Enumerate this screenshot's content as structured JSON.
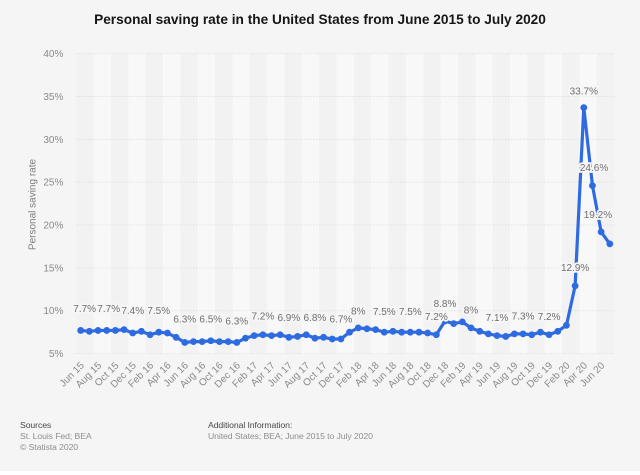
{
  "title": "Personal saving rate in the United States from June 2015 to July 2020",
  "chart_data": {
    "type": "line",
    "title": "Personal saving rate in the United States from June 2015 to July 2020",
    "xlabel": "",
    "ylabel": "Personal saving rate",
    "ylim": [
      5,
      40
    ],
    "ytick_step": 5,
    "ytick_suffix": "%",
    "ytick_labels": [
      "5%",
      "10%",
      "15%",
      "20%",
      "25%",
      "30%",
      "35%",
      "40%"
    ],
    "grid": "horizontal-dotted",
    "legend": "none",
    "x_tick_every": 2,
    "categories": [
      "Jun 15",
      "Jul 15",
      "Aug 15",
      "Sep 15",
      "Oct 15",
      "Nov 15",
      "Dec 15",
      "Jan 16",
      "Feb 16",
      "Mar 16",
      "Apr 16",
      "May 16",
      "Jun 16",
      "Jul 16",
      "Aug 16",
      "Sep 16",
      "Oct 16",
      "Nov 16",
      "Dec 16",
      "Jan 17",
      "Feb 17",
      "Mar 17",
      "Apr 17",
      "May 17",
      "Jun 17",
      "Jul 17",
      "Aug 17",
      "Sep 17",
      "Oct 17",
      "Nov 17",
      "Dec 17",
      "Jan 18",
      "Feb 18",
      "Mar 18",
      "Apr 18",
      "May 18",
      "Jun 18",
      "Jul 18",
      "Aug 18",
      "Sep 18",
      "Oct 18",
      "Nov 18",
      "Dec 18",
      "Jan 19",
      "Feb 19",
      "Mar 19",
      "Apr 19",
      "May 19",
      "Jun 19",
      "Jul 19",
      "Aug 19",
      "Sep 19",
      "Oct 19",
      "Nov 19",
      "Dec 19",
      "Jan 20",
      "Feb 20",
      "Mar 20",
      "Apr 20",
      "May 20",
      "Jun 20",
      "Jul 20"
    ],
    "values": [
      7.7,
      7.6,
      7.7,
      7.7,
      7.7,
      7.8,
      7.4,
      7.6,
      7.2,
      7.5,
      7.4,
      6.9,
      6.3,
      6.4,
      6.4,
      6.5,
      6.4,
      6.4,
      6.3,
      6.8,
      7.1,
      7.2,
      7.1,
      7.2,
      6.9,
      7.0,
      7.2,
      6.8,
      6.9,
      6.7,
      6.7,
      7.5,
      8.0,
      7.9,
      7.8,
      7.5,
      7.6,
      7.5,
      7.5,
      7.5,
      7.4,
      7.2,
      8.8,
      8.5,
      8.7,
      8.0,
      7.6,
      7.3,
      7.1,
      7.0,
      7.3,
      7.3,
      7.2,
      7.5,
      7.2,
      7.6,
      8.3,
      12.9,
      33.7,
      24.6,
      19.2,
      17.8
    ],
    "point_labels": [
      {
        "i": 0,
        "text": "7.7%"
      },
      {
        "i": 3,
        "text": "7.7%"
      },
      {
        "i": 6,
        "text": "7.4%"
      },
      {
        "i": 9,
        "text": "7.5%"
      },
      {
        "i": 12,
        "text": "6.3%"
      },
      {
        "i": 15,
        "text": "6.5%"
      },
      {
        "i": 18,
        "text": "6.3%"
      },
      {
        "i": 21,
        "text": "7.2%"
      },
      {
        "i": 24,
        "text": "6.9%"
      },
      {
        "i": 27,
        "text": "6.8%"
      },
      {
        "i": 30,
        "text": "6.7%"
      },
      {
        "i": 32,
        "text": "8%"
      },
      {
        "i": 35,
        "text": "7.5%"
      },
      {
        "i": 38,
        "text": "7.5%"
      },
      {
        "i": 41,
        "text": "7.2%"
      },
      {
        "i": 42,
        "text": "8.8%"
      },
      {
        "i": 45,
        "text": "8%"
      },
      {
        "i": 48,
        "text": "7.1%"
      },
      {
        "i": 51,
        "text": "7.3%"
      },
      {
        "i": 54,
        "text": "7.2%"
      },
      {
        "i": 57,
        "text": "12.9%"
      },
      {
        "i": 58,
        "text": "33.7%"
      },
      {
        "i": 59,
        "text": "24.6%"
      },
      {
        "i": 60,
        "text": "19.2%"
      }
    ]
  },
  "colors": {
    "line": "#2e6be0",
    "background": "#f5f5f5",
    "band_dark": "#f2f2f2",
    "band_light": "#f8f8f8",
    "grid": "#d8d8d8",
    "axis_text": "#8a8a8a",
    "data_label": "#6f6f6f",
    "title_text": "#161616",
    "footer_head": "#4f4f4f",
    "footer_text": "#8f8f8f",
    "bottom_strip": "#ffffff"
  },
  "footer": {
    "sources_label": "Sources",
    "sources_value": "St. Louis Fed; BEA",
    "copyright": "© Statista 2020",
    "additional_label": "Additional Information:",
    "additional_value": "United States; BEA; June 2015 to July 2020"
  }
}
